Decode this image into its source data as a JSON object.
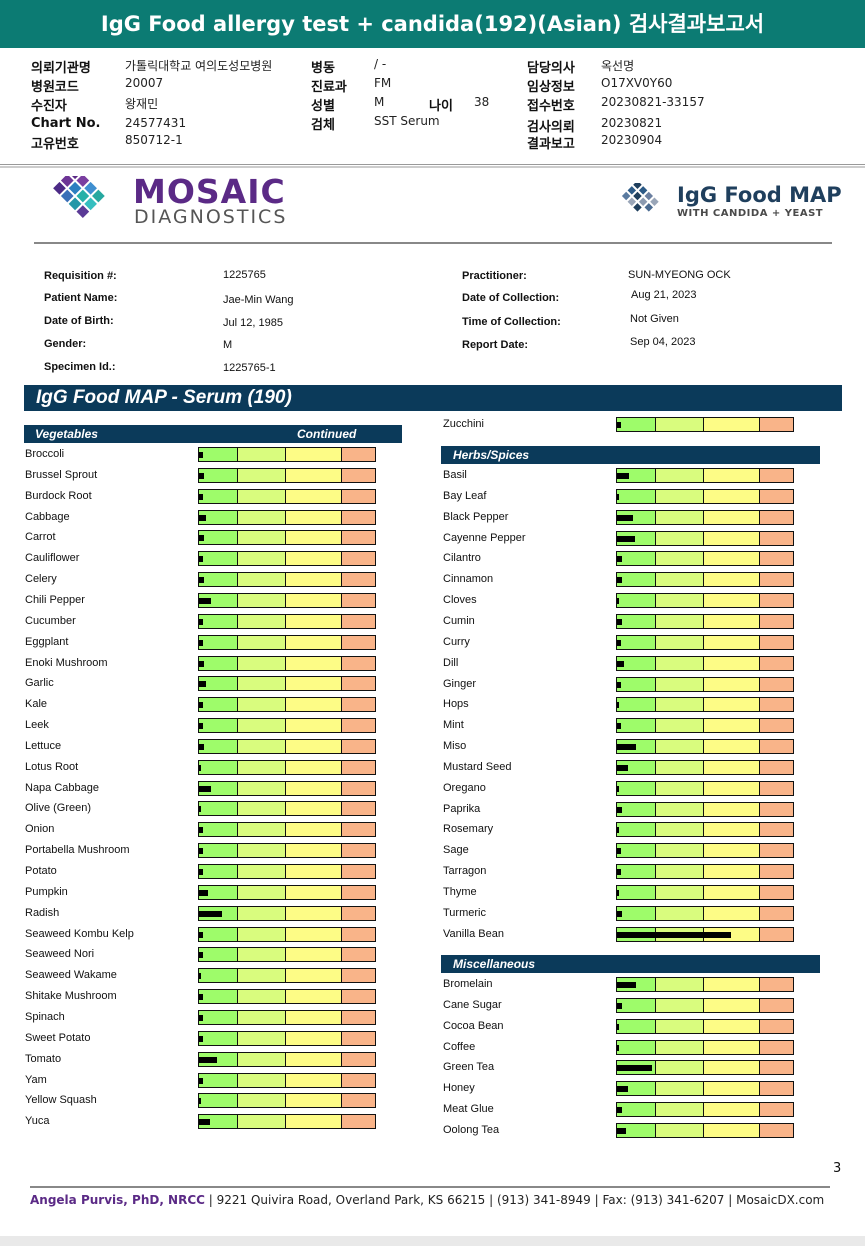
{
  "report_title": "IgG Food allergy test + candida(192)(Asian) 검사결과보고서",
  "korean_header": {
    "col1": [
      {
        "label": "의뢰기관명",
        "value": "가톨릭대학교 여의도성모병원"
      },
      {
        "label": "병원코드",
        "value": "20007"
      },
      {
        "label": "수진자",
        "value": "왕재민"
      },
      {
        "label": "Chart No.",
        "value": "24577431"
      },
      {
        "label": "고유번호",
        "value": "850712-1"
      }
    ],
    "col2": [
      {
        "label": "병동",
        "value": "/ -"
      },
      {
        "label": "진료과",
        "value": "FM"
      },
      {
        "label": "성별",
        "value": "M"
      },
      {
        "label": "검체",
        "value": "SST Serum"
      }
    ],
    "age": {
      "label": "나이",
      "value": "38"
    },
    "col3": [
      {
        "label": "담당의사",
        "value": "옥선명"
      },
      {
        "label": "임상정보",
        "value": "O17XV0Y60"
      },
      {
        "label": "접수번호",
        "value": "20230821-33157"
      },
      {
        "label": "검사의뢰",
        "value": "20230821"
      },
      {
        "label": "결과보고",
        "value": "20230904"
      }
    ]
  },
  "logos": {
    "mosaic_word": "MOSAIC",
    "diagnostics_word": "DIAGNOSTICS",
    "igg_word": "IgG Food MAP",
    "igg_sub": "WITH CANDIDA + YEAST"
  },
  "patient": {
    "left": [
      {
        "label": "Requisition #:",
        "value": "1225765"
      },
      {
        "label": "Patient Name:",
        "value": "Jae-Min Wang"
      },
      {
        "label": "Date of Birth:",
        "value": "Jul 12, 1985"
      },
      {
        "label": "Gender:",
        "value": "M"
      },
      {
        "label": "Specimen Id.:",
        "value": "1225765-1"
      }
    ],
    "right": [
      {
        "label": "Practitioner:",
        "value": "SUN-MYEONG OCK"
      },
      {
        "label": "Date of Collection:",
        "value": "Aug 21, 2023"
      },
      {
        "label": "Time of Collection:",
        "value": "Not Given"
      },
      {
        "label": "Report Date:",
        "value": "Sep 04, 2023"
      }
    ]
  },
  "panel_title": "IgG Food MAP - Serum (190)",
  "sections": {
    "vegetables": "Vegetables",
    "continued": "Continued",
    "herbs": "Herbs/Spices",
    "misc": "Miscellaneous"
  },
  "left_foods": [
    {
      "name": "Broccoli",
      "level": 0.02
    },
    {
      "name": "Brussel Sprout",
      "level": 0.03
    },
    {
      "name": "Burdock Root",
      "level": 0.02
    },
    {
      "name": "Cabbage",
      "level": 0.04
    },
    {
      "name": "Carrot",
      "level": 0.03
    },
    {
      "name": "Cauliflower",
      "level": 0.02
    },
    {
      "name": "Celery",
      "level": 0.03
    },
    {
      "name": "Chili Pepper",
      "level": 0.07
    },
    {
      "name": "Cucumber",
      "level": 0.02
    },
    {
      "name": "Eggplant",
      "level": 0.02
    },
    {
      "name": "Enoki Mushroom",
      "level": 0.03
    },
    {
      "name": "Garlic",
      "level": 0.04
    },
    {
      "name": "Kale",
      "level": 0.02
    },
    {
      "name": "Leek",
      "level": 0.02
    },
    {
      "name": "Lettuce",
      "level": 0.03
    },
    {
      "name": "Lotus Root",
      "level": 0.01
    },
    {
      "name": "Napa Cabbage",
      "level": 0.07
    },
    {
      "name": "Olive (Green)",
      "level": 0.0
    },
    {
      "name": "Onion",
      "level": 0.02
    },
    {
      "name": "Portabella Mushroom",
      "level": 0.02
    },
    {
      "name": "Potato",
      "level": 0.02
    },
    {
      "name": "Pumpkin",
      "level": 0.05
    },
    {
      "name": "Radish",
      "level": 0.13
    },
    {
      "name": "Seaweed Kombu Kelp",
      "level": 0.02
    },
    {
      "name": "Seaweed Nori",
      "level": 0.02
    },
    {
      "name": "Seaweed Wakame",
      "level": 0.01
    },
    {
      "name": "Shitake Mushroom",
      "level": 0.02
    },
    {
      "name": "Spinach",
      "level": 0.02
    },
    {
      "name": "Sweet Potato",
      "level": 0.02
    },
    {
      "name": "Tomato",
      "level": 0.1
    },
    {
      "name": "Yam",
      "level": 0.02
    },
    {
      "name": "Yellow Squash",
      "level": 0.01
    },
    {
      "name": "Yuca",
      "level": 0.06
    }
  ],
  "zucchini": {
    "name": "Zucchini",
    "level": 0.02
  },
  "herbs_foods": [
    {
      "name": "Basil",
      "level": 0.07
    },
    {
      "name": "Bay Leaf",
      "level": 0.01
    },
    {
      "name": "Black Pepper",
      "level": 0.09
    },
    {
      "name": "Cayenne Pepper",
      "level": 0.1
    },
    {
      "name": "Cilantro",
      "level": 0.03
    },
    {
      "name": "Cinnamon",
      "level": 0.03
    },
    {
      "name": "Cloves",
      "level": 0.01
    },
    {
      "name": "Cumin",
      "level": 0.03
    },
    {
      "name": "Curry",
      "level": 0.02
    },
    {
      "name": "Dill",
      "level": 0.04
    },
    {
      "name": "Ginger",
      "level": 0.02
    },
    {
      "name": "Hops",
      "level": 0.01
    },
    {
      "name": "Mint",
      "level": 0.02
    },
    {
      "name": "Miso",
      "level": 0.11
    },
    {
      "name": "Mustard Seed",
      "level": 0.06
    },
    {
      "name": "Oregano",
      "level": 0.01
    },
    {
      "name": "Paprika",
      "level": 0.03
    },
    {
      "name": "Rosemary",
      "level": 0.01
    },
    {
      "name": "Sage",
      "level": 0.02
    },
    {
      "name": "Tarragon",
      "level": 0.02
    },
    {
      "name": "Thyme",
      "level": 0.01
    },
    {
      "name": "Turmeric",
      "level": 0.03
    },
    {
      "name": "Vanilla Bean",
      "level": 0.65
    }
  ],
  "misc_foods": [
    {
      "name": "Bromelain",
      "level": 0.11
    },
    {
      "name": "Cane Sugar",
      "level": 0.03
    },
    {
      "name": "Cocoa Bean",
      "level": 0.0
    },
    {
      "name": "Coffee",
      "level": 0.01
    },
    {
      "name": "Green Tea",
      "level": 0.2
    },
    {
      "name": "Honey",
      "level": 0.06
    },
    {
      "name": "Meat Glue",
      "level": 0.03
    },
    {
      "name": "Oolong Tea",
      "level": 0.05
    }
  ],
  "page_number": "3",
  "footer": {
    "name": "Angela Purvis, PhD, NRCC",
    "address": " | 9221 Quivira Road, Overland Park, KS 66215  |  (913) 341-8949  |  Fax: (913) 341-6207 | MosaicDX.com"
  },
  "colors": {
    "teal_header": "#0c7b73",
    "navy_section": "#0b3a5a",
    "zone_green": "#9efc6a",
    "zone_lightgreen": "#d9fc7e",
    "zone_yellow": "#fdfc86",
    "zone_orange": "#f9b489",
    "mosaic_purple": "#5b2a86"
  }
}
